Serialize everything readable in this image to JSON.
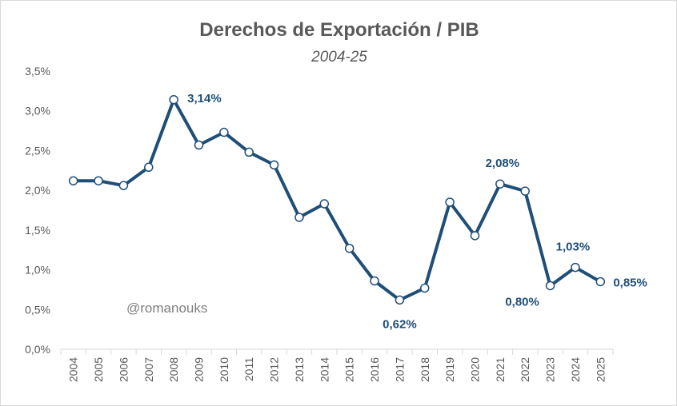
{
  "chart_data": {
    "type": "line",
    "title": "Derechos de Exportación / PIB",
    "subtitle": "2004-25",
    "xlabel": "",
    "ylabel": "",
    "categories": [
      "2004",
      "2005",
      "2006",
      "2007",
      "2008",
      "2009",
      "2010",
      "2011",
      "2012",
      "2013",
      "2014",
      "2015",
      "2016",
      "2017",
      "2018",
      "2019",
      "2020",
      "2021",
      "2022",
      "2023",
      "2024",
      "2025"
    ],
    "series": [
      {
        "values": [
          2.12,
          2.12,
          2.06,
          2.29,
          3.14,
          2.57,
          2.73,
          2.48,
          2.32,
          1.66,
          1.83,
          1.27,
          0.86,
          0.62,
          0.77,
          1.85,
          1.43,
          2.08,
          1.99,
          0.8,
          1.03,
          0.85
        ],
        "color": "#1f4e79"
      }
    ],
    "y_ticks": [
      "0,0%",
      "0,5%",
      "1,0%",
      "1,5%",
      "2,0%",
      "2,5%",
      "3,0%",
      "3,5%"
    ],
    "ylim": [
      0,
      3.5
    ],
    "grid": false,
    "legend": "none",
    "data_labels": [
      {
        "category": "2008",
        "text": "3,14%"
      },
      {
        "category": "2017",
        "text": "0,62%"
      },
      {
        "category": "2021",
        "text": "2,08%"
      },
      {
        "category": "2023",
        "text": "0,80%"
      },
      {
        "category": "2024",
        "text": "1,03%"
      },
      {
        "category": "2025",
        "text": "0,85%"
      }
    ],
    "watermark": "@romanouks"
  }
}
